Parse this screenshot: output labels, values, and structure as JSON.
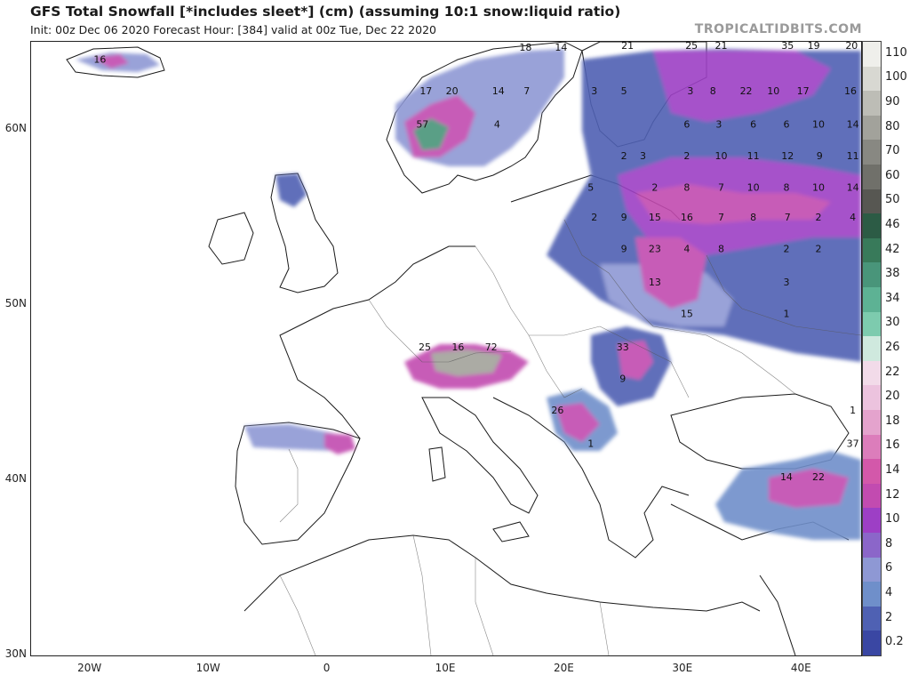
{
  "header": {
    "title": "GFS Total Snowfall [*includes sleet*] (cm) (assuming 10:1 snow:liquid ratio)",
    "subtitle": "Init: 00z Dec 06 2020   Forecast Hour: [384]   valid at 00z Tue, Dec 22 2020",
    "source": "TROPICALTIDBITS.COM"
  },
  "axes": {
    "lat_labels": [
      "60N",
      "50N",
      "40N",
      "30N"
    ],
    "lon_labels": [
      "20W",
      "10W",
      "0",
      "10E",
      "20E",
      "30E",
      "40E"
    ],
    "lon_range": [
      -25,
      45
    ],
    "lat_range": [
      30,
      65
    ]
  },
  "colorbar": {
    "labels": [
      "110",
      "100",
      "90",
      "80",
      "70",
      "60",
      "50",
      "46",
      "42",
      "38",
      "34",
      "30",
      "26",
      "22",
      "20",
      "18",
      "16",
      "14",
      "12",
      "10",
      "8",
      "6",
      "4",
      "2",
      "0.2"
    ],
    "colors": [
      "#efefeb",
      "#d8d8d2",
      "#bdbdb6",
      "#a2a29b",
      "#888882",
      "#70706a",
      "#575752",
      "#2c5b45",
      "#387a5a",
      "#49957a",
      "#5db294",
      "#7dcbae",
      "#cfe9de",
      "#f2dbe9",
      "#ecc3de",
      "#e4a3cd",
      "#dc7dbb",
      "#d358aa",
      "#c24bb0",
      "#9d3fc5",
      "#8b66c9",
      "#8e98d4",
      "#6f8fca",
      "#4f61b3",
      "#3a47a3"
    ]
  },
  "point_labels": [
    {
      "text": "16",
      "lon": -19.2,
      "lat": 63.8
    },
    {
      "text": "18",
      "lon": 16.7,
      "lat": 64.5
    },
    {
      "text": "14",
      "lon": 19.7,
      "lat": 64.5
    },
    {
      "text": "17",
      "lon": 8.3,
      "lat": 62.0
    },
    {
      "text": "20",
      "lon": 10.5,
      "lat": 62.0
    },
    {
      "text": "14",
      "lon": 14.4,
      "lat": 62.0
    },
    {
      "text": "7",
      "lon": 16.8,
      "lat": 62.0
    },
    {
      "text": "57",
      "lon": 8.0,
      "lat": 60.1
    },
    {
      "text": "4",
      "lon": 14.3,
      "lat": 60.1
    },
    {
      "text": "21",
      "lon": 25.3,
      "lat": 64.6
    },
    {
      "text": "25",
      "lon": 30.7,
      "lat": 64.6
    },
    {
      "text": "21",
      "lon": 33.2,
      "lat": 64.6
    },
    {
      "text": "35",
      "lon": 38.8,
      "lat": 64.6
    },
    {
      "text": "19",
      "lon": 41.0,
      "lat": 64.6
    },
    {
      "text": "20",
      "lon": 44.2,
      "lat": 64.6
    },
    {
      "text": "3",
      "lon": 22.5,
      "lat": 62.0
    },
    {
      "text": "5",
      "lon": 25.0,
      "lat": 62.0
    },
    {
      "text": "3",
      "lon": 30.6,
      "lat": 62.0
    },
    {
      "text": "8",
      "lon": 32.5,
      "lat": 62.0
    },
    {
      "text": "22",
      "lon": 35.3,
      "lat": 62.0
    },
    {
      "text": "10",
      "lon": 37.6,
      "lat": 62.0
    },
    {
      "text": "17",
      "lon": 40.1,
      "lat": 62.0
    },
    {
      "text": "16",
      "lon": 44.1,
      "lat": 62.0
    },
    {
      "text": "6",
      "lon": 30.3,
      "lat": 60.1
    },
    {
      "text": "3",
      "lon": 33.0,
      "lat": 60.1
    },
    {
      "text": "6",
      "lon": 35.9,
      "lat": 60.1
    },
    {
      "text": "6",
      "lon": 38.7,
      "lat": 60.1
    },
    {
      "text": "10",
      "lon": 41.4,
      "lat": 60.1
    },
    {
      "text": "14",
      "lon": 44.3,
      "lat": 60.1
    },
    {
      "text": "2",
      "lon": 25.0,
      "lat": 58.3
    },
    {
      "text": "3",
      "lon": 26.6,
      "lat": 58.3
    },
    {
      "text": "2",
      "lon": 30.3,
      "lat": 58.3
    },
    {
      "text": "10",
      "lon": 33.2,
      "lat": 58.3
    },
    {
      "text": "11",
      "lon": 35.9,
      "lat": 58.3
    },
    {
      "text": "12",
      "lon": 38.8,
      "lat": 58.3
    },
    {
      "text": "9",
      "lon": 41.5,
      "lat": 58.3
    },
    {
      "text": "11",
      "lon": 44.3,
      "lat": 58.3
    },
    {
      "text": "5",
      "lon": 22.2,
      "lat": 56.5
    },
    {
      "text": "2",
      "lon": 27.6,
      "lat": 56.5
    },
    {
      "text": "8",
      "lon": 30.3,
      "lat": 56.5
    },
    {
      "text": "7",
      "lon": 33.2,
      "lat": 56.5
    },
    {
      "text": "10",
      "lon": 35.9,
      "lat": 56.5
    },
    {
      "text": "8",
      "lon": 38.7,
      "lat": 56.5
    },
    {
      "text": "10",
      "lon": 41.4,
      "lat": 56.5
    },
    {
      "text": "14",
      "lon": 44.3,
      "lat": 56.5
    },
    {
      "text": "2",
      "lon": 22.5,
      "lat": 54.8
    },
    {
      "text": "9",
      "lon": 25.0,
      "lat": 54.8
    },
    {
      "text": "15",
      "lon": 27.6,
      "lat": 54.8
    },
    {
      "text": "16",
      "lon": 30.3,
      "lat": 54.8
    },
    {
      "text": "7",
      "lon": 33.2,
      "lat": 54.8
    },
    {
      "text": "8",
      "lon": 35.9,
      "lat": 54.8
    },
    {
      "text": "7",
      "lon": 38.8,
      "lat": 54.8
    },
    {
      "text": "2",
      "lon": 41.4,
      "lat": 54.8
    },
    {
      "text": "4",
      "lon": 44.3,
      "lat": 54.8
    },
    {
      "text": "9",
      "lon": 25.0,
      "lat": 53.0
    },
    {
      "text": "23",
      "lon": 27.6,
      "lat": 53.0
    },
    {
      "text": "4",
      "lon": 30.3,
      "lat": 53.0
    },
    {
      "text": "8",
      "lon": 33.2,
      "lat": 53.0
    },
    {
      "text": "2",
      "lon": 38.7,
      "lat": 53.0
    },
    {
      "text": "2",
      "lon": 41.4,
      "lat": 53.0
    },
    {
      "text": "13",
      "lon": 27.6,
      "lat": 51.1
    },
    {
      "text": "3",
      "lon": 38.7,
      "lat": 51.1
    },
    {
      "text": "15",
      "lon": 30.3,
      "lat": 49.3
    },
    {
      "text": "1",
      "lon": 38.7,
      "lat": 49.3
    },
    {
      "text": "25",
      "lon": 8.2,
      "lat": 47.4
    },
    {
      "text": "16",
      "lon": 11.0,
      "lat": 47.4
    },
    {
      "text": "72",
      "lon": 13.8,
      "lat": 47.4
    },
    {
      "text": "33",
      "lon": 24.9,
      "lat": 47.4
    },
    {
      "text": "9",
      "lon": 24.9,
      "lat": 45.6
    },
    {
      "text": "26",
      "lon": 19.4,
      "lat": 43.8
    },
    {
      "text": "1",
      "lon": 44.3,
      "lat": 43.8
    },
    {
      "text": "1",
      "lon": 22.2,
      "lat": 41.9
    },
    {
      "text": "37",
      "lon": 44.3,
      "lat": 41.9
    },
    {
      "text": "14",
      "lon": 38.7,
      "lat": 40.0
    },
    {
      "text": "22",
      "lon": 41.4,
      "lat": 40.0
    }
  ]
}
